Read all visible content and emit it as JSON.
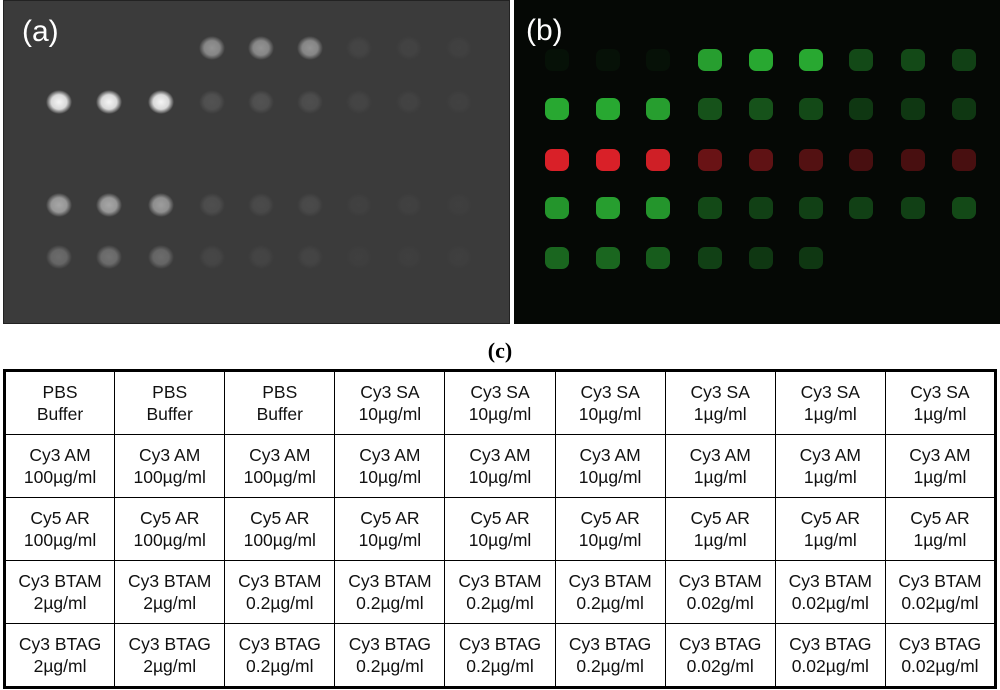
{
  "panels": {
    "a": {
      "label": "(a)",
      "tone": "#ffffff",
      "intensity": [
        [
          0,
          0,
          0,
          0.45,
          0.45,
          0.45,
          0.05,
          0.04,
          0.03
        ],
        [
          0.95,
          0.95,
          0.95,
          0.12,
          0.12,
          0.1,
          0.05,
          0.04,
          0.03
        ],
        [
          0,
          0,
          0,
          0,
          0,
          0,
          0,
          0,
          0
        ],
        [
          0.55,
          0.55,
          0.5,
          0.1,
          0.08,
          0.08,
          0.03,
          0.03,
          0.02
        ],
        [
          0.25,
          0.28,
          0.25,
          0.06,
          0.05,
          0.05,
          0.02,
          0.02,
          0.02
        ]
      ]
    },
    "b": {
      "label": "(b)",
      "green": "#2fc43a",
      "red": "#e5222a",
      "rows": [
        {
          "color": "green",
          "intensity": [
            0.05,
            0.05,
            0.05,
            0.8,
            0.85,
            0.85,
            0.35,
            0.35,
            0.3
          ]
        },
        {
          "color": "green",
          "intensity": [
            0.85,
            0.85,
            0.8,
            0.4,
            0.4,
            0.35,
            0.25,
            0.25,
            0.25
          ]
        },
        {
          "color": "red",
          "intensity": [
            0.95,
            0.95,
            0.9,
            0.45,
            0.4,
            0.35,
            0.3,
            0.3,
            0.3
          ]
        },
        {
          "color": "green",
          "intensity": [
            0.75,
            0.8,
            0.75,
            0.35,
            0.3,
            0.3,
            0.3,
            0.3,
            0.35
          ]
        },
        {
          "color": "green",
          "intensity": [
            0.5,
            0.5,
            0.45,
            0.3,
            0.25,
            0.25,
            0,
            0,
            0
          ]
        }
      ]
    }
  },
  "caption": "(c)",
  "table": {
    "rows": [
      [
        [
          "PBS",
          "Buffer"
        ],
        [
          "PBS",
          "Buffer"
        ],
        [
          "PBS",
          "Buffer"
        ],
        [
          "Cy3 SA",
          "10µg/ml"
        ],
        [
          "Cy3 SA",
          "10µg/ml"
        ],
        [
          "Cy3 SA",
          "10µg/ml"
        ],
        [
          "Cy3 SA",
          "1µg/ml"
        ],
        [
          "Cy3 SA",
          "1µg/ml"
        ],
        [
          "Cy3 SA",
          "1µg/ml"
        ]
      ],
      [
        [
          "Cy3 AM",
          "100µg/ml"
        ],
        [
          "Cy3 AM",
          "100µg/ml"
        ],
        [
          "Cy3 AM",
          "100µg/ml"
        ],
        [
          "Cy3 AM",
          "10µg/ml"
        ],
        [
          "Cy3 AM",
          "10µg/ml"
        ],
        [
          "Cy3 AM",
          "10µg/ml"
        ],
        [
          "Cy3 AM",
          "1µg/ml"
        ],
        [
          "Cy3 AM",
          "1µg/ml"
        ],
        [
          "Cy3 AM",
          "1µg/ml"
        ]
      ],
      [
        [
          "Cy5 AR",
          "100µg/ml"
        ],
        [
          "Cy5 AR",
          "100µg/ml"
        ],
        [
          "Cy5 AR",
          "100µg/ml"
        ],
        [
          "Cy5 AR",
          "10µg/ml"
        ],
        [
          "Cy5 AR",
          "10µg/ml"
        ],
        [
          "Cy5 AR",
          "10µg/ml"
        ],
        [
          "Cy5 AR",
          "1µg/ml"
        ],
        [
          "Cy5 AR",
          "1µg/ml"
        ],
        [
          "Cy5 AR",
          "1µg/ml"
        ]
      ],
      [
        [
          "Cy3 BTAM",
          "2µg/ml"
        ],
        [
          "Cy3 BTAM",
          "2µg/ml"
        ],
        [
          "Cy3 BTAM",
          "0.2µg/ml"
        ],
        [
          "Cy3 BTAM",
          "0.2µg/ml"
        ],
        [
          "Cy3 BTAM",
          "0.2µg/ml"
        ],
        [
          "Cy3 BTAM",
          "0.2µg/ml"
        ],
        [
          "Cy3 BTAM",
          "0.02g/ml"
        ],
        [
          "Cy3 BTAM",
          "0.02µg/ml"
        ],
        [
          "Cy3 BTAM",
          "0.02µg/ml"
        ]
      ],
      [
        [
          "Cy3 BTAG",
          "2µg/ml"
        ],
        [
          "Cy3 BTAG",
          "2µg/ml"
        ],
        [
          "Cy3 BTAG",
          "0.2µg/ml"
        ],
        [
          "Cy3 BTAG",
          "0.2µg/ml"
        ],
        [
          "Cy3 BTAG",
          "0.2µg/ml"
        ],
        [
          "Cy3 BTAG",
          "0.2µg/ml"
        ],
        [
          "Cy3 BTAG",
          "0.02g/ml"
        ],
        [
          "Cy3 BTAG",
          "0.02µg/ml"
        ],
        [
          "Cy3 BTAG",
          "0.02µg/ml"
        ]
      ]
    ]
  }
}
